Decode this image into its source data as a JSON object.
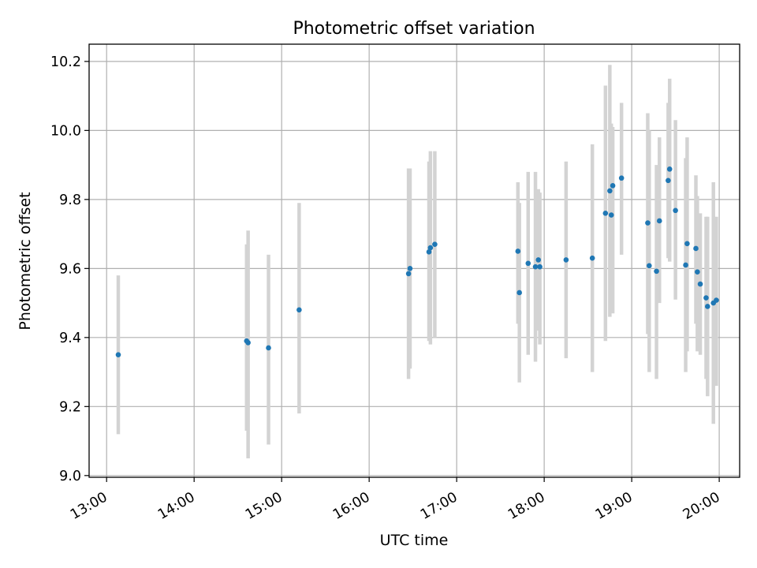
{
  "chart_data": {
    "type": "scatter",
    "title": "Photometric offset variation",
    "xlabel": "UTC time",
    "ylabel": "Photometric offset",
    "x_ticks": [
      "13:00",
      "14:00",
      "15:00",
      "16:00",
      "17:00",
      "18:00",
      "19:00",
      "20:00"
    ],
    "y_ticks": [
      "9.0",
      "9.2",
      "9.4",
      "9.6",
      "9.8",
      "10.0",
      "10.2"
    ],
    "xlim": [
      "12:48",
      "20:14"
    ],
    "ylim": [
      8.995,
      10.25
    ],
    "grid": true,
    "colors": {
      "points": "#1f77b4",
      "errorbars": "#d3d3d3"
    },
    "points": [
      {
        "x": "13:08",
        "y": 9.35,
        "lo": 9.12,
        "hi": 9.58
      },
      {
        "x": "14:36",
        "y": 9.39,
        "lo": 9.13,
        "hi": 9.67
      },
      {
        "x": "14:37",
        "y": 9.385,
        "lo": 9.05,
        "hi": 9.71
      },
      {
        "x": "14:51",
        "y": 9.37,
        "lo": 9.09,
        "hi": 9.64
      },
      {
        "x": "15:12",
        "y": 9.48,
        "lo": 9.18,
        "hi": 9.79
      },
      {
        "x": "16:27",
        "y": 9.585,
        "lo": 9.28,
        "hi": 9.89
      },
      {
        "x": "16:28",
        "y": 9.6,
        "lo": 9.31,
        "hi": 9.89
      },
      {
        "x": "16:41",
        "y": 9.648,
        "lo": 9.39,
        "hi": 9.91
      },
      {
        "x": "16:42",
        "y": 9.66,
        "lo": 9.38,
        "hi": 9.94
      },
      {
        "x": "16:45",
        "y": 9.67,
        "lo": 9.4,
        "hi": 9.94
      },
      {
        "x": "17:42",
        "y": 9.65,
        "lo": 9.44,
        "hi": 9.85
      },
      {
        "x": "17:43",
        "y": 9.53,
        "lo": 9.27,
        "hi": 9.79
      },
      {
        "x": "17:49",
        "y": 9.615,
        "lo": 9.35,
        "hi": 9.88
      },
      {
        "x": "17:54",
        "y": 9.605,
        "lo": 9.33,
        "hi": 9.88
      },
      {
        "x": "17:56",
        "y": 9.625,
        "lo": 9.42,
        "hi": 9.83
      },
      {
        "x": "17:57",
        "y": 9.605,
        "lo": 9.38,
        "hi": 9.82
      },
      {
        "x": "18:15",
        "y": 9.625,
        "lo": 9.34,
        "hi": 9.91
      },
      {
        "x": "18:33",
        "y": 9.63,
        "lo": 9.3,
        "hi": 9.96
      },
      {
        "x": "18:42",
        "y": 9.76,
        "lo": 9.39,
        "hi": 10.13
      },
      {
        "x": "18:45",
        "y": 9.825,
        "lo": 9.46,
        "hi": 10.19
      },
      {
        "x": "18:46",
        "y": 9.755,
        "lo": 9.49,
        "hi": 10.02
      },
      {
        "x": "18:47",
        "y": 9.84,
        "lo": 9.47,
        "hi": 10.01
      },
      {
        "x": "18:53",
        "y": 9.862,
        "lo": 9.64,
        "hi": 10.08
      },
      {
        "x": "19:11",
        "y": 9.732,
        "lo": 9.41,
        "hi": 10.05
      },
      {
        "x": "19:12",
        "y": 9.608,
        "lo": 9.3,
        "hi": 10.0
      },
      {
        "x": "19:17",
        "y": 9.592,
        "lo": 9.28,
        "hi": 9.9
      },
      {
        "x": "19:19",
        "y": 9.738,
        "lo": 9.5,
        "hi": 9.98
      },
      {
        "x": "19:25",
        "y": 9.855,
        "lo": 9.63,
        "hi": 10.08
      },
      {
        "x": "19:26",
        "y": 9.888,
        "lo": 9.62,
        "hi": 10.15
      },
      {
        "x": "19:30",
        "y": 9.768,
        "lo": 9.51,
        "hi": 10.03
      },
      {
        "x": "19:37",
        "y": 9.61,
        "lo": 9.3,
        "hi": 9.92
      },
      {
        "x": "19:38",
        "y": 9.672,
        "lo": 9.36,
        "hi": 9.98
      },
      {
        "x": "19:44",
        "y": 9.658,
        "lo": 9.44,
        "hi": 9.87
      },
      {
        "x": "19:45",
        "y": 9.59,
        "lo": 9.36,
        "hi": 9.81
      },
      {
        "x": "19:47",
        "y": 9.555,
        "lo": 9.35,
        "hi": 9.76
      },
      {
        "x": "19:51",
        "y": 9.515,
        "lo": 9.28,
        "hi": 9.75
      },
      {
        "x": "19:52",
        "y": 9.49,
        "lo": 9.23,
        "hi": 9.75
      },
      {
        "x": "19:56",
        "y": 9.5,
        "lo": 9.15,
        "hi": 9.85
      },
      {
        "x": "19:58",
        "y": 9.508,
        "lo": 9.26,
        "hi": 9.75
      }
    ]
  }
}
